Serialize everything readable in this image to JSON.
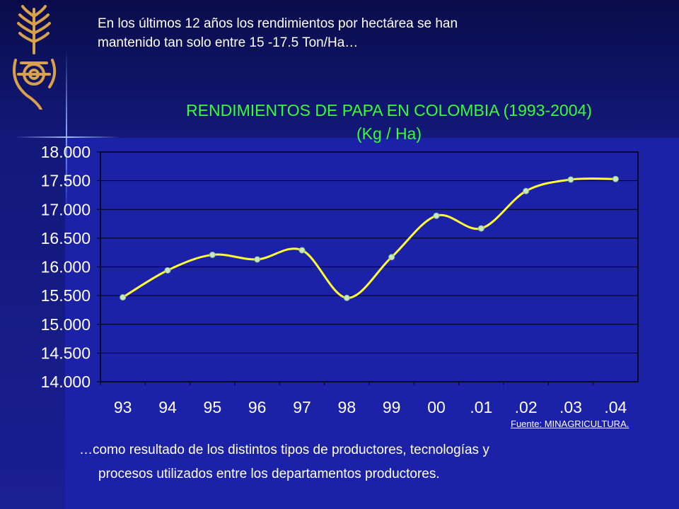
{
  "intro": {
    "line1": "En los últimos 12 años los rendimientos por hectárea se han",
    "line2": "mantenido tan solo entre 15 -17.5 Ton/Ha…"
  },
  "outro": {
    "line1": "…como resultado de los distintos tipos de productores, tecnologías y",
    "line2": "procesos utilizados entre los departamentos productores."
  },
  "source": "Fuente: MINAGRICULTURA.",
  "colors": {
    "background": "#1c22a8",
    "title": "#33ff33",
    "line": "#ffff33",
    "marker": "#c8e8c0",
    "axis_text": "#ffffff"
  },
  "chart_data": {
    "type": "line",
    "title": "RENDIMIENTOS DE PAPA EN COLOMBIA (1993-2004)",
    "subtitle": "(Kg / Ha)",
    "categories": [
      "93",
      "94",
      "95",
      "96",
      "97",
      "98",
      "99",
      "00",
      ".01",
      ".02",
      ".03",
      ".04"
    ],
    "series": [
      {
        "values": [
          15470,
          15940,
          16210,
          16130,
          16290,
          15460,
          16170,
          16890,
          16670,
          17320,
          17520,
          17530
        ]
      }
    ],
    "ylim": [
      14000,
      18000
    ],
    "yticks": [
      "14.000",
      "14.500",
      "15.000",
      "15.500",
      "16.000",
      "16.500",
      "17.000",
      "17.500",
      "18.000"
    ],
    "ytick_values": [
      14000,
      14500,
      15000,
      15500,
      16000,
      16500,
      17000,
      17500,
      18000
    ],
    "grid": true,
    "smooth": true
  }
}
